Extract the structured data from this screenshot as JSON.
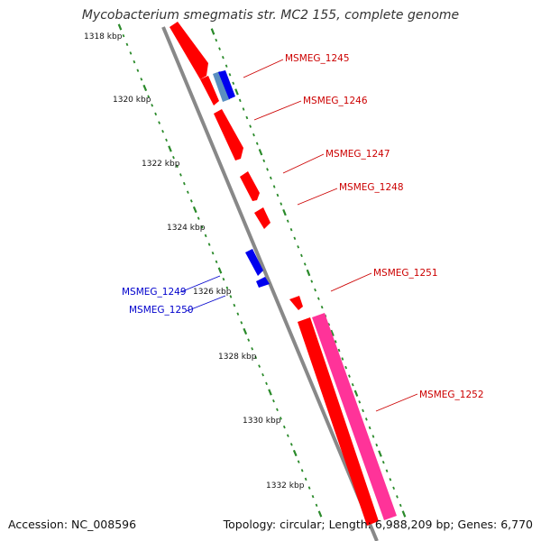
{
  "title": "Mycobacterium smegmatis str. MC2 155, complete genome",
  "footer": {
    "accession": "Accession: NC_008596",
    "summary": "Topology: circular; Length: 6,988,209 bp; Genes: 6,770"
  },
  "colors": {
    "forward_gene": "#ff0000",
    "reverse_gene": "#0000ee",
    "highlight_gene": "#ff3399",
    "pale_gene": "#5a8fc0",
    "backbone": "#888888",
    "ticks": "#2a8a2a",
    "forward_label": "#cc0000",
    "reverse_label": "#0000cc"
  },
  "scale_labels": [
    "1318 kbp",
    "1320 kbp",
    "1322 kbp",
    "1324 kbp",
    "1326 kbp",
    "1328 kbp",
    "1330 kbp",
    "1332 kbp"
  ],
  "genes": [
    {
      "name": "MSMEG_1245",
      "strand": "forward"
    },
    {
      "name": "MSMEG_1246",
      "strand": "forward"
    },
    {
      "name": "MSMEG_1247",
      "strand": "forward"
    },
    {
      "name": "MSMEG_1248",
      "strand": "forward"
    },
    {
      "name": "MSMEG_1249",
      "strand": "reverse"
    },
    {
      "name": "MSMEG_1250",
      "strand": "reverse"
    },
    {
      "name": "MSMEG_1251",
      "strand": "forward"
    },
    {
      "name": "MSMEG_1252",
      "strand": "forward"
    }
  ]
}
